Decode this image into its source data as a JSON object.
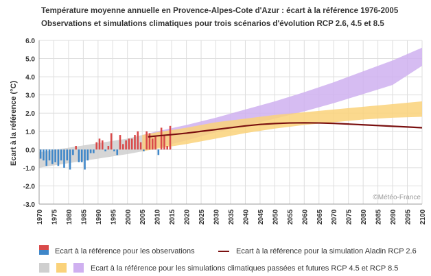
{
  "title_line1": "Température moyenne annuelle en Provence-Alpes-Cote d'Azur : écart à la référence 1976-2005",
  "title_line2": "Observations et simulations climatiques pour trois scénarios d'évolution RCP 2.6, 4.5 et 8.5",
  "watermark": "©Météo-France",
  "legend": {
    "observations": "Ecart à la référence pour les observations",
    "aladin": "Ecart à la référence pour la simulation Aladin RCP 2.6",
    "simulations": "Ecart à la référence pour les simulations climatiques passées et futures RCP 4.5 et RCP 8.5"
  },
  "colors": {
    "positive": "#d94a4a",
    "negative": "#3f87c9",
    "historical_band": "#cfcfcf",
    "rcp45_band": "#fad27a",
    "rcp85_band": "#cfb0f0",
    "aladin_line": "#7a1010",
    "grid": "#dddddd"
  },
  "chart_data": {
    "type": "bar",
    "ylabel": "Ecart à la référence (°C)",
    "xlabel": "",
    "xlim": [
      1970,
      2100
    ],
    "ylim": [
      -3.0,
      6.0
    ],
    "yticks": [
      "-3.0",
      "-2.0",
      "-1.0",
      "0.0",
      "1.0",
      "2.0",
      "3.0",
      "4.0",
      "5.0",
      "6.0"
    ],
    "xticks": [
      "1970",
      "1975",
      "1980",
      "1985",
      "1990",
      "1995",
      "2000",
      "2005",
      "2010",
      "2015",
      "2020",
      "2025",
      "2030",
      "2035",
      "2040",
      "2045",
      "2050",
      "2055",
      "2060",
      "2065",
      "2070",
      "2075",
      "2080",
      "2085",
      "2090",
      "2095",
      "2100"
    ],
    "observations": {
      "years": [
        1970,
        1971,
        1972,
        1973,
        1974,
        1975,
        1976,
        1977,
        1978,
        1979,
        1980,
        1981,
        1982,
        1983,
        1984,
        1985,
        1986,
        1987,
        1988,
        1989,
        1990,
        1991,
        1992,
        1993,
        1994,
        1995,
        1996,
        1997,
        1998,
        1999,
        2000,
        2001,
        2002,
        2003,
        2004,
        2005,
        2006,
        2007,
        2008,
        2009,
        2010,
        2011,
        2012,
        2013,
        2014
      ],
      "values": [
        -0.5,
        -0.6,
        -0.9,
        -0.6,
        -0.8,
        -0.7,
        -0.9,
        -0.6,
        -1.0,
        -0.6,
        -1.1,
        -0.3,
        0.2,
        -0.7,
        -0.7,
        -1.1,
        -0.6,
        -0.2,
        -0.2,
        0.4,
        0.6,
        0.5,
        -0.1,
        0.2,
        0.9,
        -0.1,
        -0.3,
        0.8,
        0.3,
        0.5,
        0.6,
        0.6,
        0.8,
        1.0,
        0.4,
        -0.1,
        1.0,
        0.9,
        0.6,
        0.7,
        -0.3,
        1.2,
        0.8,
        0.2,
        1.3
      ]
    },
    "aladin_rcp26": {
      "x": [
        2007,
        2010,
        2015,
        2020,
        2025,
        2030,
        2035,
        2040,
        2045,
        2050,
        2055,
        2060,
        2065,
        2070,
        2075,
        2080,
        2085,
        2090,
        2095,
        2100
      ],
      "y": [
        0.7,
        0.75,
        0.82,
        0.9,
        1.0,
        1.1,
        1.2,
        1.3,
        1.38,
        1.43,
        1.46,
        1.47,
        1.46,
        1.44,
        1.4,
        1.36,
        1.32,
        1.28,
        1.24,
        1.2
      ]
    },
    "historical_band": {
      "x": [
        1970,
        1980,
        1990,
        2000,
        2005
      ],
      "upper": [
        -0.15,
        0.1,
        0.35,
        0.6,
        0.8
      ],
      "lower": [
        -1.0,
        -0.75,
        -0.5,
        -0.25,
        -0.1
      ]
    },
    "rcp45_band": {
      "x": [
        2005,
        2010,
        2020,
        2030,
        2040,
        2050,
        2060,
        2070,
        2080,
        2090,
        2100
      ],
      "upper": [
        0.8,
        0.95,
        1.2,
        1.5,
        1.7,
        1.9,
        2.05,
        2.2,
        2.35,
        2.5,
        2.65
      ],
      "lower": [
        -0.1,
        0.05,
        0.3,
        0.6,
        0.9,
        1.15,
        1.35,
        1.5,
        1.65,
        1.75,
        1.8
      ]
    },
    "rcp85_band": {
      "x": [
        2005,
        2010,
        2020,
        2030,
        2040,
        2050,
        2060,
        2070,
        2080,
        2090,
        2100
      ],
      "upper": [
        0.8,
        1.0,
        1.35,
        1.75,
        2.2,
        2.65,
        3.15,
        3.7,
        4.3,
        4.9,
        5.6
      ],
      "lower": [
        -0.1,
        0.1,
        0.5,
        0.95,
        1.3,
        1.7,
        2.1,
        2.55,
        3.05,
        3.55,
        4.6
      ]
    }
  }
}
